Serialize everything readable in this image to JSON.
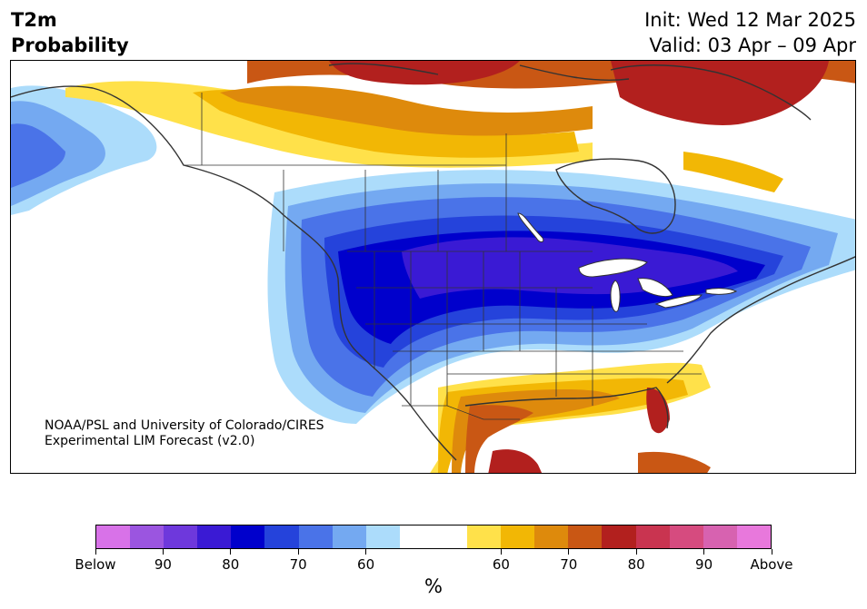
{
  "header": {
    "title_line1": "T2m",
    "title_line2": "Probability",
    "init": "Init: Wed 12 Mar 2025",
    "valid": "Valid: 03 Apr – 09 Apr"
  },
  "credit": {
    "line1": "NOAA/PSL and University of Colorado/CIRES",
    "line2": "Experimental LIM Forecast (v2.0)"
  },
  "colorbar": {
    "colors": [
      "#d872e8",
      "#9b55e0",
      "#6e38dc",
      "#3a1ad4",
      "#0000cc",
      "#2543db",
      "#4a73e8",
      "#74a9f1",
      "#acdcfb",
      "#ffffff",
      "#ffffff",
      "#ffe14a",
      "#f2b705",
      "#de8a0c",
      "#c95714",
      "#b2201e",
      "#c93450",
      "#d64b7f",
      "#d762b0",
      "#e878dc"
    ],
    "labels": [
      "Below",
      "90",
      "80",
      "70",
      "60",
      "60",
      "70",
      "80",
      "90",
      "Above"
    ],
    "unit": "%"
  }
}
